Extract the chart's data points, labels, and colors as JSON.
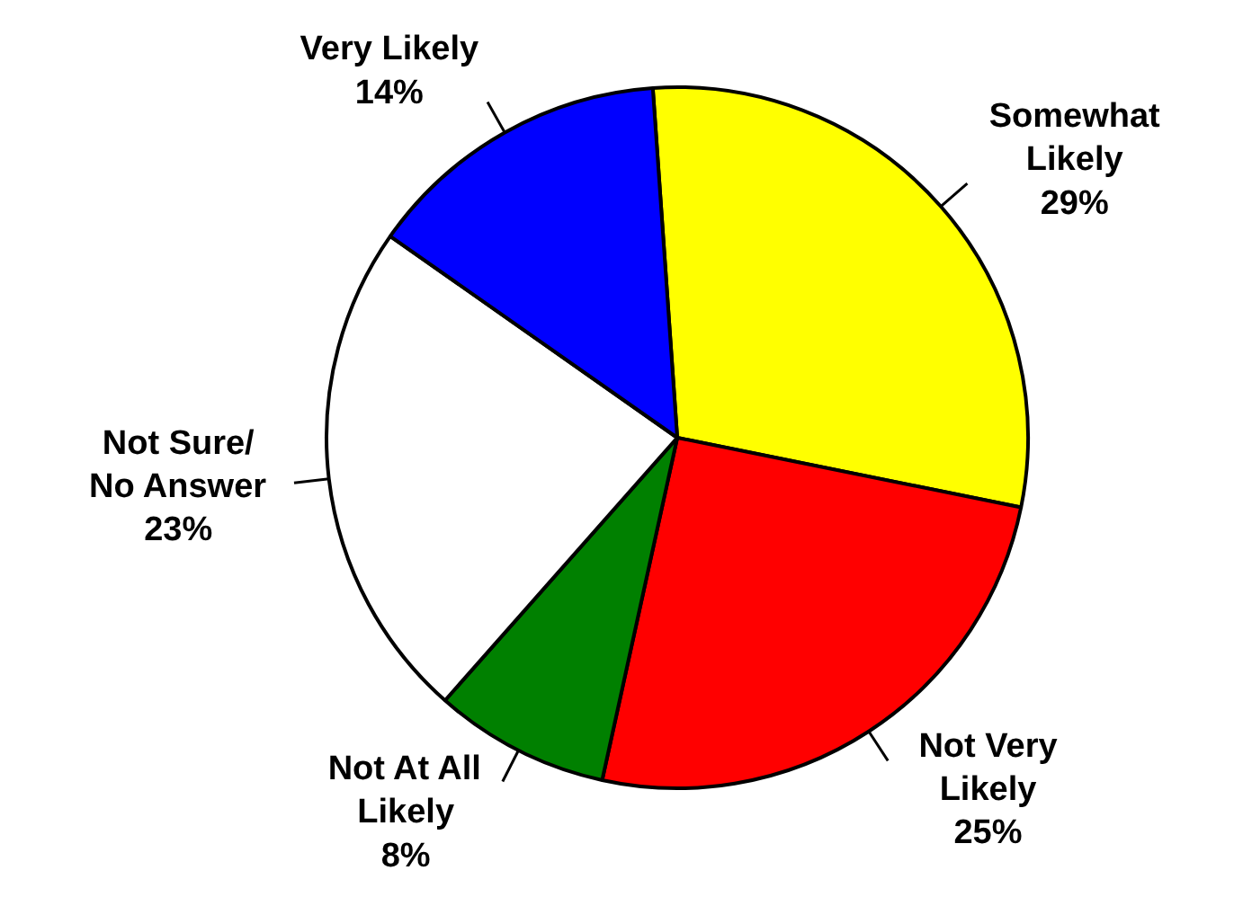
{
  "chart_data": {
    "type": "pie",
    "categories": [
      "Somewhat\nLikely",
      "Not Very\nLikely",
      "Not At All\nLikely",
      "Not Sure/\nNo Answer",
      "Very Likely"
    ],
    "values": [
      29,
      25,
      8,
      23,
      14
    ],
    "value_labels": [
      "29%",
      "25%",
      "8%",
      "23%",
      "14%"
    ],
    "colors": [
      "#ffff00",
      "#ff0000",
      "#008000",
      "#ffffff",
      "#0000ff"
    ]
  }
}
